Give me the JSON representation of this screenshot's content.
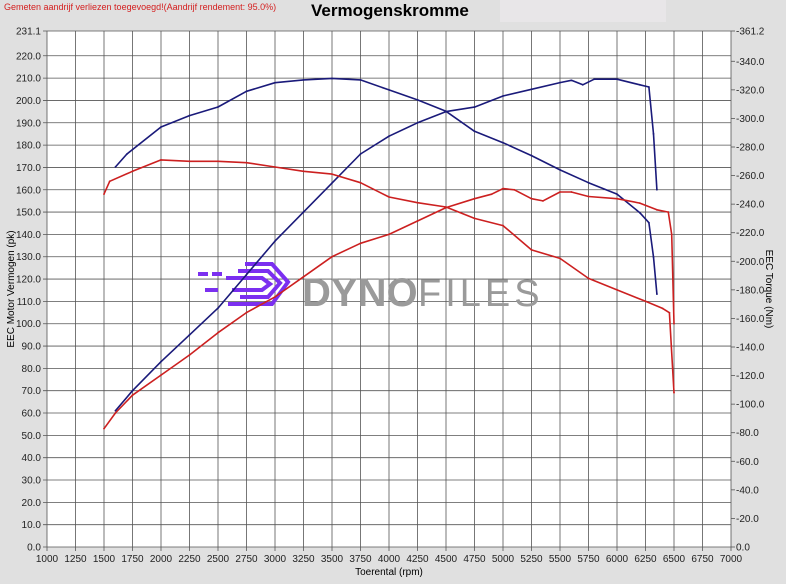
{
  "header": {
    "note": "Gemeten aandrijf verliezen toegevoegd!(Aandrijf rendement: 95.0%)",
    "title": "Vermogenskromme"
  },
  "logo": {
    "text_bold": "DYNO",
    "text_light": "FILES",
    "icon_color": "#7b2ff0",
    "text_color": "#9a9a9a"
  },
  "chart_data": {
    "type": "line",
    "title": "Vermogenskromme",
    "xlabel": "Toerental (rpm)",
    "ylabel": "EEC Motor Vermogen (pk)",
    "y2label": "EEC Torque (Nm)",
    "xlim": [
      1000,
      7000
    ],
    "ylim": [
      0,
      231.1
    ],
    "y2lim": [
      0,
      361.2
    ],
    "grid": true,
    "xticks": [
      1000,
      1250,
      1500,
      1750,
      2000,
      2250,
      2500,
      2750,
      3000,
      3250,
      3500,
      3750,
      4000,
      4250,
      4500,
      4750,
      5000,
      5250,
      5500,
      5750,
      6000,
      6250,
      6500,
      6750,
      7000
    ],
    "yticks": [
      "0.0",
      "10.0",
      "20.0",
      "30.0",
      "40.0",
      "50.0",
      "60.0",
      "70.0",
      "80.0",
      "90.0",
      "100.0",
      "110.0",
      "120.0",
      "130.0",
      "140.0",
      "150.0",
      "160.0",
      "170.0",
      "180.0",
      "190.0",
      "200.0",
      "210.0",
      "220.0",
      "231.1"
    ],
    "y2ticks": [
      "0.0",
      "20.0",
      "40.0",
      "60.0",
      "80.0",
      "100.0",
      "120.0",
      "140.0",
      "160.0",
      "180.0",
      "200.0",
      "220.0",
      "240.0",
      "260.0",
      "280.0",
      "300.0",
      "320.0",
      "340.0",
      "361.2"
    ],
    "series": [
      {
        "color": "#1a1a7a",
        "axis": "left",
        "x": [
          1600,
          1750,
          2000,
          2250,
          2500,
          2750,
          3000,
          3250,
          3500,
          3750,
          4000,
          4250,
          4500,
          4750,
          5000,
          5250,
          5500,
          5600,
          5700,
          5800,
          6000,
          6200,
          6280,
          6320,
          6350
        ],
        "values": [
          61,
          70,
          83,
          95,
          107,
          122,
          137,
          150,
          163,
          176,
          184,
          190,
          195,
          197,
          202,
          205,
          208,
          209,
          207,
          209.5,
          209.5,
          207,
          206,
          185,
          160
        ]
      },
      {
        "color": "#1a1a7a",
        "axis": "right",
        "x": [
          1600,
          1700,
          2000,
          2250,
          2500,
          2750,
          3000,
          3250,
          3500,
          3750,
          4000,
          4250,
          4500,
          4750,
          5000,
          5250,
          5500,
          5750,
          6000,
          6200,
          6280,
          6320,
          6350
        ],
        "values": [
          266,
          275,
          294,
          302,
          308,
          319,
          325,
          327,
          328,
          327,
          320,
          313,
          305,
          291,
          283,
          274,
          264,
          255,
          247,
          234,
          227,
          203,
          177
        ]
      },
      {
        "color": "#cc2020",
        "axis": "left",
        "x": [
          1500,
          1600,
          1750,
          2000,
          2250,
          2500,
          2750,
          3000,
          3250,
          3500,
          3750,
          4000,
          4250,
          4500,
          4750,
          4900,
          5000,
          5100,
          5250,
          5350,
          5500,
          5600,
          5750,
          6000,
          6200,
          6350,
          6450,
          6480,
          6500
        ],
        "values": [
          53,
          60,
          68,
          77,
          86,
          96,
          105,
          112,
          121,
          130,
          136,
          140,
          146,
          152,
          156,
          158,
          160.5,
          160,
          156,
          155,
          159,
          159,
          157,
          156,
          154,
          151,
          150,
          140,
          100
        ]
      },
      {
        "color": "#cc2020",
        "axis": "right",
        "x": [
          1500,
          1550,
          1750,
          2000,
          2250,
          2500,
          2750,
          3000,
          3250,
          3500,
          3750,
          4000,
          4250,
          4500,
          4750,
          5000,
          5250,
          5500,
          5750,
          6000,
          6250,
          6400,
          6460,
          6500
        ],
        "values": [
          247,
          256,
          263,
          271,
          270,
          270,
          269,
          266,
          263,
          261,
          255,
          245,
          241,
          238,
          230,
          225,
          208,
          202,
          188,
          180,
          172,
          167,
          164,
          108
        ]
      }
    ]
  }
}
